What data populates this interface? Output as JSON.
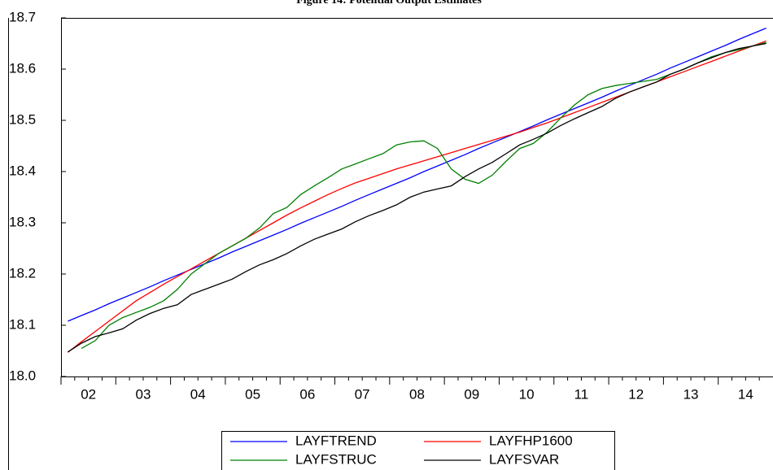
{
  "chart_data": {
    "type": "line",
    "title": "Figure 14: Potential Output Estimates",
    "categories": [
      null,
      "02",
      null,
      null,
      null,
      "03",
      null,
      null,
      null,
      "04",
      null,
      null,
      null,
      "05",
      null,
      null,
      null,
      "06",
      null,
      null,
      null,
      "07",
      null,
      null,
      null,
      "08",
      null,
      null,
      null,
      "09",
      null,
      null,
      null,
      "10",
      null,
      null,
      null,
      "11",
      null,
      null,
      null,
      "12",
      null,
      null,
      null,
      "13",
      null,
      null,
      null,
      "14",
      null,
      null
    ],
    "ylim": [
      18.0,
      18.7
    ],
    "yticks": [
      {
        "value": 18.0,
        "label": "18.0"
      },
      18.1,
      18.2,
      18.3,
      18.4,
      18.5,
      18.6,
      18.7
    ],
    "series": [
      {
        "name": "LAYFTREND",
        "color": "#0000ff",
        "values": [
          18.108,
          18.119,
          18.13,
          18.142,
          18.153,
          18.164,
          18.175,
          18.187,
          18.198,
          18.209,
          18.22,
          18.231,
          18.243,
          18.254,
          18.265,
          18.276,
          18.287,
          18.299,
          18.31,
          18.321,
          18.332,
          18.344,
          18.355,
          18.366,
          18.377,
          18.388,
          18.4,
          18.411,
          18.422,
          18.433,
          18.445,
          18.456,
          18.467,
          18.478,
          18.489,
          18.501,
          18.512,
          18.523,
          18.534,
          18.545,
          18.557,
          18.568,
          18.579,
          18.59,
          18.602,
          18.613,
          18.624,
          18.635,
          18.646,
          18.658,
          18.669,
          18.68
        ]
      },
      {
        "name": "LAYFHP1600",
        "color": "#ff0000",
        "values": [
          18.047,
          18.068,
          18.088,
          18.108,
          18.128,
          18.148,
          18.164,
          18.18,
          18.195,
          18.21,
          18.225,
          18.24,
          18.255,
          18.27,
          18.285,
          18.3,
          18.315,
          18.329,
          18.342,
          18.355,
          18.367,
          18.378,
          18.387,
          18.396,
          18.405,
          18.413,
          18.421,
          18.429,
          18.437,
          18.445,
          18.453,
          18.461,
          18.469,
          18.477,
          18.486,
          18.495,
          18.505,
          18.515,
          18.525,
          18.535,
          18.545,
          18.555,
          18.565,
          18.575,
          18.585,
          18.595,
          18.605,
          18.615,
          18.625,
          18.635,
          18.645,
          18.655
        ]
      },
      {
        "name": "LAYFSTRUC",
        "color": "#008000",
        "values": [
          null,
          18.055,
          18.07,
          18.1,
          18.115,
          18.125,
          18.135,
          18.148,
          18.17,
          18.2,
          18.22,
          18.24,
          18.255,
          18.27,
          18.29,
          18.318,
          18.33,
          18.355,
          18.372,
          18.388,
          18.405,
          18.415,
          18.425,
          18.435,
          18.452,
          18.458,
          18.46,
          18.445,
          18.405,
          18.385,
          18.377,
          18.393,
          18.42,
          18.445,
          18.455,
          18.477,
          18.505,
          18.53,
          18.55,
          18.562,
          18.568,
          18.572,
          18.576,
          18.58,
          18.59,
          18.6,
          18.612,
          18.624,
          18.632,
          18.638,
          18.645,
          18.652
        ]
      },
      {
        "name": "LAYFSVAR",
        "color": "#000000",
        "values": [
          18.048,
          18.065,
          18.078,
          18.085,
          18.093,
          18.11,
          18.123,
          18.133,
          18.14,
          18.16,
          18.17,
          18.18,
          18.19,
          18.205,
          18.218,
          18.228,
          18.24,
          18.255,
          18.268,
          18.278,
          18.288,
          18.302,
          18.314,
          18.324,
          18.335,
          18.35,
          18.36,
          18.366,
          18.372,
          18.39,
          18.405,
          18.418,
          18.435,
          18.452,
          18.463,
          18.475,
          18.49,
          18.503,
          18.515,
          18.527,
          18.543,
          18.555,
          18.565,
          18.575,
          18.59,
          18.6,
          18.612,
          18.622,
          18.632,
          18.64,
          18.645,
          18.65
        ]
      }
    ]
  }
}
